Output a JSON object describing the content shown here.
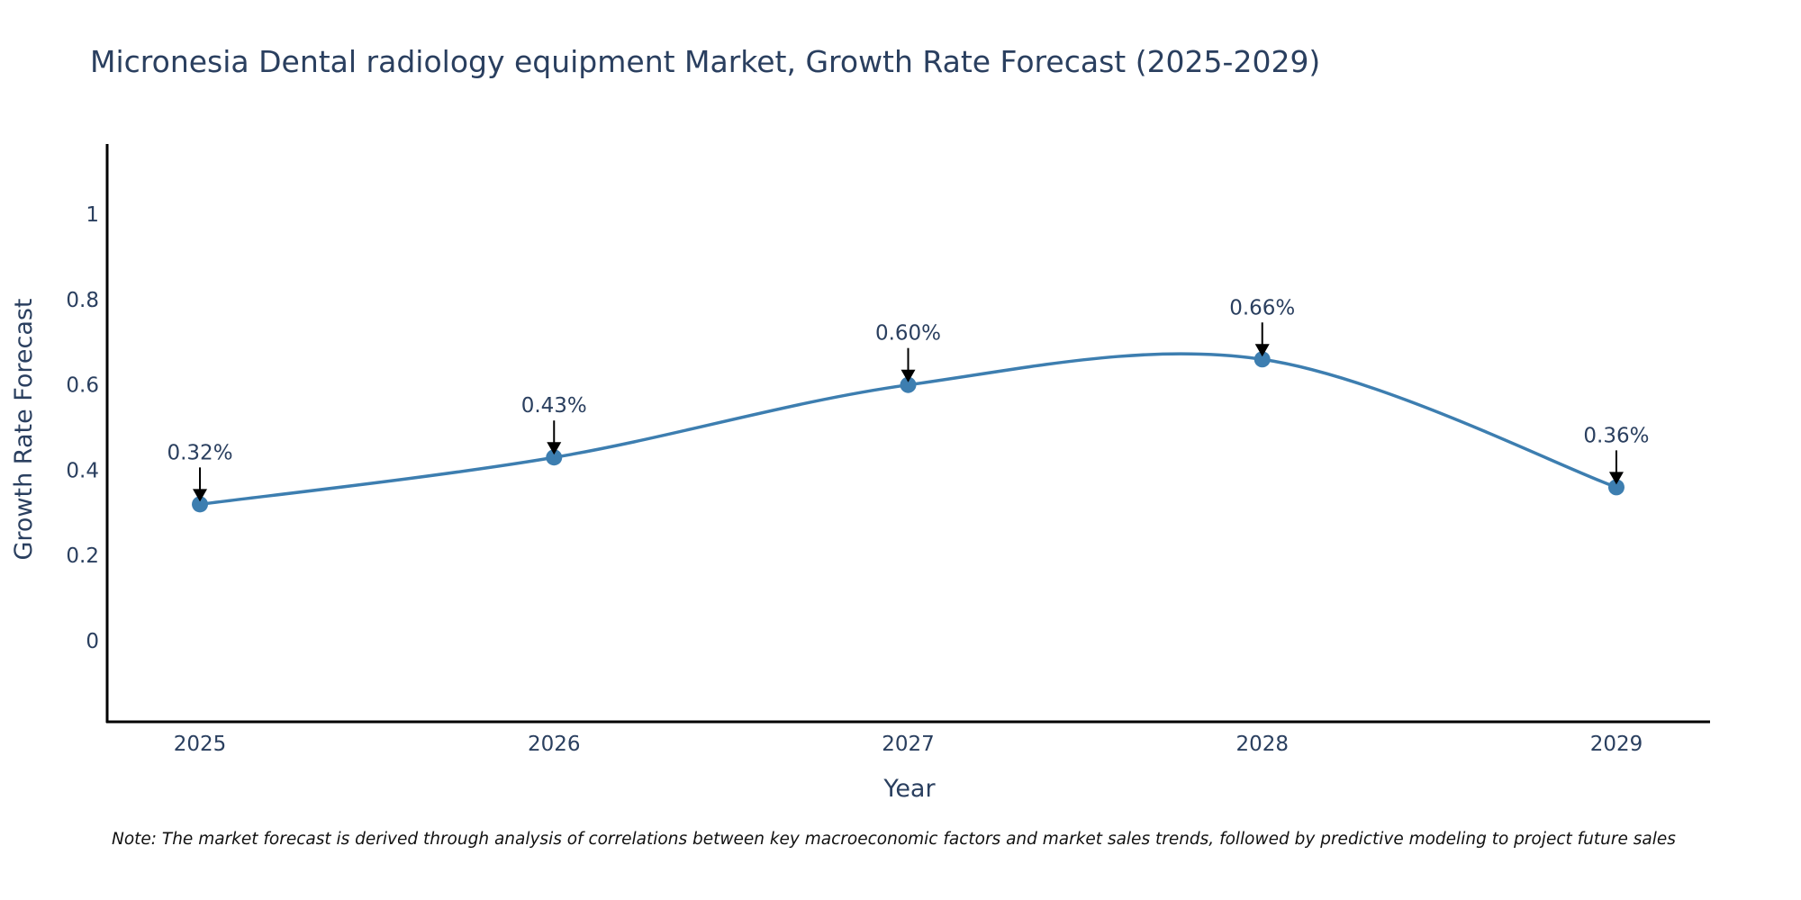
{
  "chart_data": {
    "type": "line",
    "title": "Micronesia Dental radiology equipment Market, Growth Rate Forecast (2025-2029)",
    "xlabel": "Year",
    "ylabel": "Growth Rate Forecast",
    "categories": [
      "2025",
      "2026",
      "2027",
      "2028",
      "2029"
    ],
    "series": [
      {
        "name": "Growth Rate Forecast",
        "values": [
          0.32,
          0.43,
          0.6,
          0.66,
          0.36
        ],
        "color": "#3d7eb0",
        "line_shape": "spline"
      }
    ],
    "annotations": [
      "0.32%",
      "0.43%",
      "0.60%",
      "0.66%",
      "0.36%"
    ],
    "yticks": [
      0,
      0.2,
      0.4,
      0.6,
      0.8,
      1
    ],
    "ytick_labels": [
      "0",
      "0.2",
      "0.4",
      "0.6",
      "0.8",
      "1"
    ],
    "ylim": [
      -0.19,
      1.165
    ],
    "grid": false,
    "legend": "none"
  },
  "note": "Note: The market forecast is derived through analysis of correlations between key macroeconomic factors and market sales trends, followed by predictive modeling to project future sales"
}
